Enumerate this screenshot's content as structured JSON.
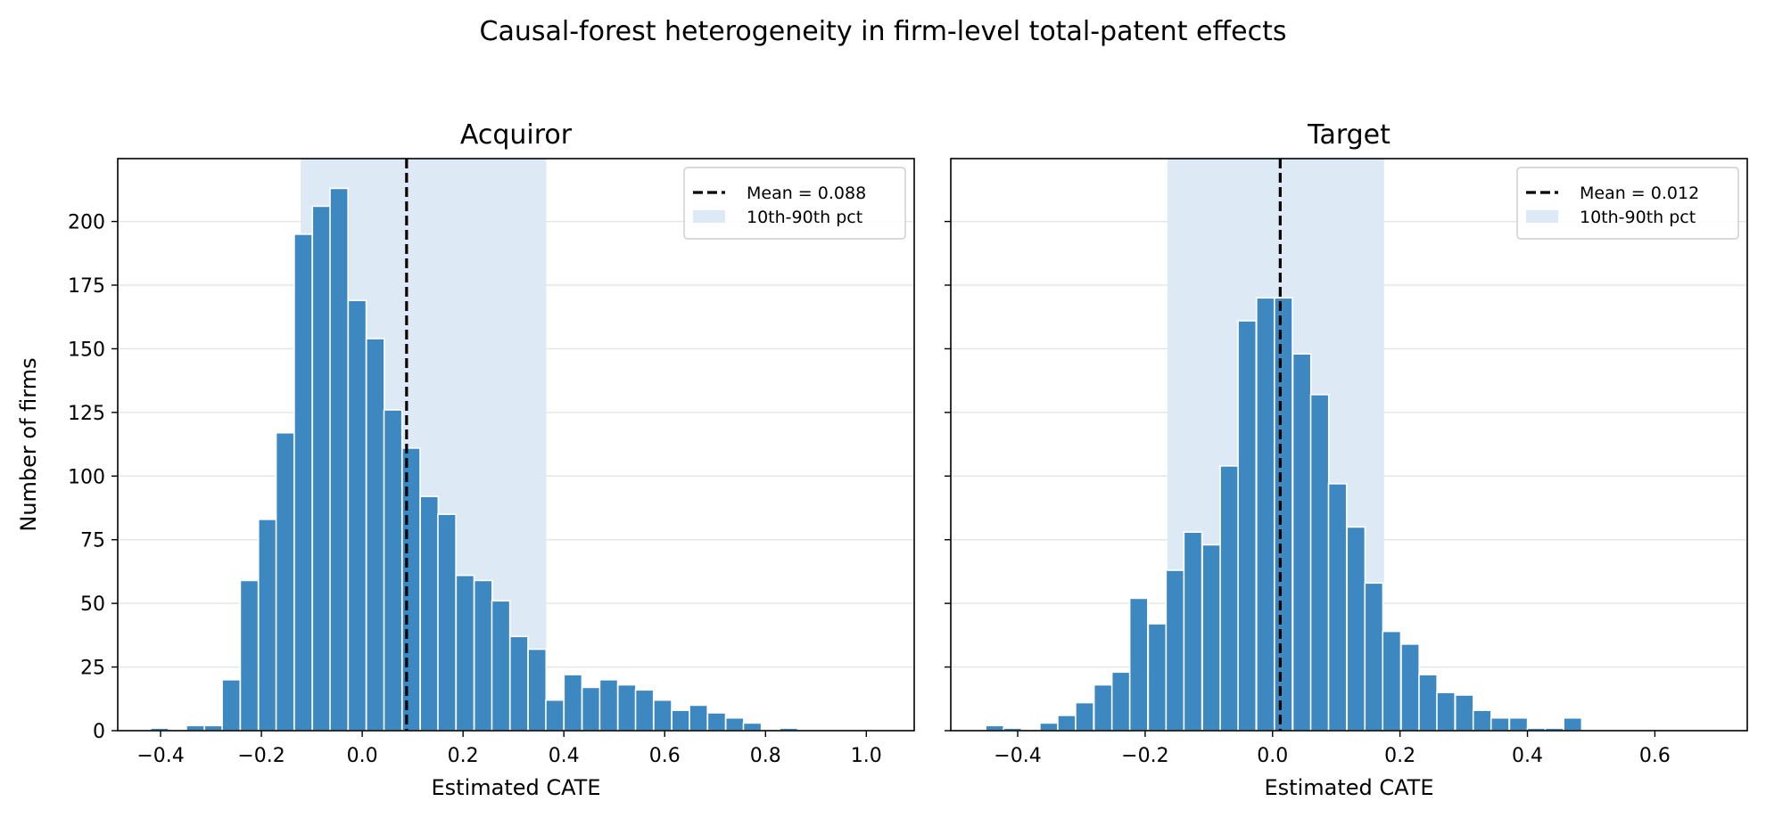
{
  "figure": {
    "title": "Causal-forest heterogeneity in firm-level total-patent effects"
  },
  "colors": {
    "bar": "#3d88c0",
    "band": "#dde9f4",
    "mean_line": "#000000",
    "grid": "#e6e6e6"
  },
  "chart_data": [
    {
      "type": "bar",
      "title": "Acquiror",
      "xlabel": "Estimated CATE",
      "ylabel": "Number of firms",
      "xlim": [
        -0.485,
        1.095
      ],
      "ylim": [
        0,
        224.7
      ],
      "xticks": [
        -0.4,
        -0.2,
        0.0,
        0.2,
        0.4,
        0.6,
        0.8,
        1.0
      ],
      "xtick_labels": [
        "−0.4",
        "−0.2",
        "0.0",
        "0.2",
        "0.4",
        "0.6",
        "0.8",
        "1.0"
      ],
      "yticks": [
        0,
        25,
        50,
        75,
        100,
        125,
        150,
        175,
        200
      ],
      "ytick_labels": [
        "0",
        "25",
        "50",
        "75",
        "100",
        "125",
        "150",
        "175",
        "200"
      ],
      "grid": "horizontal",
      "bin_width": 0.0357,
      "bins": [
        {
          "x": -0.402,
          "y": 1
        },
        {
          "x": -0.366,
          "y": 0
        },
        {
          "x": -0.331,
          "y": 2
        },
        {
          "x": -0.295,
          "y": 2
        },
        {
          "x": -0.26,
          "y": 20
        },
        {
          "x": -0.224,
          "y": 59
        },
        {
          "x": -0.188,
          "y": 83
        },
        {
          "x": -0.153,
          "y": 117
        },
        {
          "x": -0.117,
          "y": 195
        },
        {
          "x": -0.081,
          "y": 206
        },
        {
          "x": -0.046,
          "y": 213
        },
        {
          "x": -0.01,
          "y": 169
        },
        {
          "x": 0.026,
          "y": 154
        },
        {
          "x": 0.061,
          "y": 126
        },
        {
          "x": 0.097,
          "y": 111
        },
        {
          "x": 0.133,
          "y": 92
        },
        {
          "x": 0.168,
          "y": 85
        },
        {
          "x": 0.204,
          "y": 61
        },
        {
          "x": 0.24,
          "y": 59
        },
        {
          "x": 0.275,
          "y": 51
        },
        {
          "x": 0.311,
          "y": 37
        },
        {
          "x": 0.347,
          "y": 32
        },
        {
          "x": 0.382,
          "y": 12
        },
        {
          "x": 0.418,
          "y": 22
        },
        {
          "x": 0.454,
          "y": 17
        },
        {
          "x": 0.489,
          "y": 20
        },
        {
          "x": 0.525,
          "y": 18
        },
        {
          "x": 0.56,
          "y": 16
        },
        {
          "x": 0.596,
          "y": 12
        },
        {
          "x": 0.632,
          "y": 8
        },
        {
          "x": 0.667,
          "y": 10
        },
        {
          "x": 0.703,
          "y": 7
        },
        {
          "x": 0.739,
          "y": 5
        },
        {
          "x": 0.774,
          "y": 3
        },
        {
          "x": 0.81,
          "y": 0
        },
        {
          "x": 0.846,
          "y": 1
        }
      ],
      "mean": 0.088,
      "band": [
        -0.122,
        0.365
      ],
      "legend": {
        "position": "upper right",
        "mean_label": "Mean = 0.088",
        "band_label": "10th-90th pct"
      }
    },
    {
      "type": "bar",
      "title": "Target",
      "xlabel": "Estimated CATE",
      "ylabel": "",
      "xlim": [
        -0.505,
        0.745
      ],
      "ylim": [
        0,
        224.7
      ],
      "xticks": [
        -0.4,
        -0.2,
        0.0,
        0.2,
        0.4,
        0.6
      ],
      "xtick_labels": [
        "−0.4",
        "−0.2",
        "0.0",
        "0.2",
        "0.4",
        "0.6"
      ],
      "yticks": [
        0,
        25,
        50,
        75,
        100,
        125,
        150,
        175,
        200
      ],
      "ytick_labels": [],
      "grid": "horizontal",
      "bin_width": 0.0283,
      "bins": [
        {
          "x": -0.436,
          "y": 2
        },
        {
          "x": -0.408,
          "y": 1
        },
        {
          "x": -0.38,
          "y": 0
        },
        {
          "x": -0.351,
          "y": 3
        },
        {
          "x": -0.323,
          "y": 6
        },
        {
          "x": -0.295,
          "y": 11
        },
        {
          "x": -0.266,
          "y": 18
        },
        {
          "x": -0.238,
          "y": 23
        },
        {
          "x": -0.21,
          "y": 52
        },
        {
          "x": -0.181,
          "y": 42
        },
        {
          "x": -0.153,
          "y": 63
        },
        {
          "x": -0.125,
          "y": 78
        },
        {
          "x": -0.096,
          "y": 73
        },
        {
          "x": -0.068,
          "y": 104
        },
        {
          "x": -0.04,
          "y": 161
        },
        {
          "x": -0.011,
          "y": 170
        },
        {
          "x": 0.017,
          "y": 170
        },
        {
          "x": 0.046,
          "y": 148
        },
        {
          "x": 0.074,
          "y": 132
        },
        {
          "x": 0.102,
          "y": 97
        },
        {
          "x": 0.131,
          "y": 80
        },
        {
          "x": 0.159,
          "y": 58
        },
        {
          "x": 0.187,
          "y": 39
        },
        {
          "x": 0.216,
          "y": 34
        },
        {
          "x": 0.244,
          "y": 22
        },
        {
          "x": 0.272,
          "y": 15
        },
        {
          "x": 0.301,
          "y": 14
        },
        {
          "x": 0.329,
          "y": 8
        },
        {
          "x": 0.357,
          "y": 5
        },
        {
          "x": 0.386,
          "y": 5
        },
        {
          "x": 0.414,
          "y": 1
        },
        {
          "x": 0.442,
          "y": 1
        },
        {
          "x": 0.471,
          "y": 5
        }
      ],
      "mean": 0.012,
      "band": [
        -0.165,
        0.175
      ],
      "legend": {
        "position": "upper right",
        "mean_label": "Mean = 0.012",
        "band_label": "10th-90th pct"
      }
    }
  ]
}
